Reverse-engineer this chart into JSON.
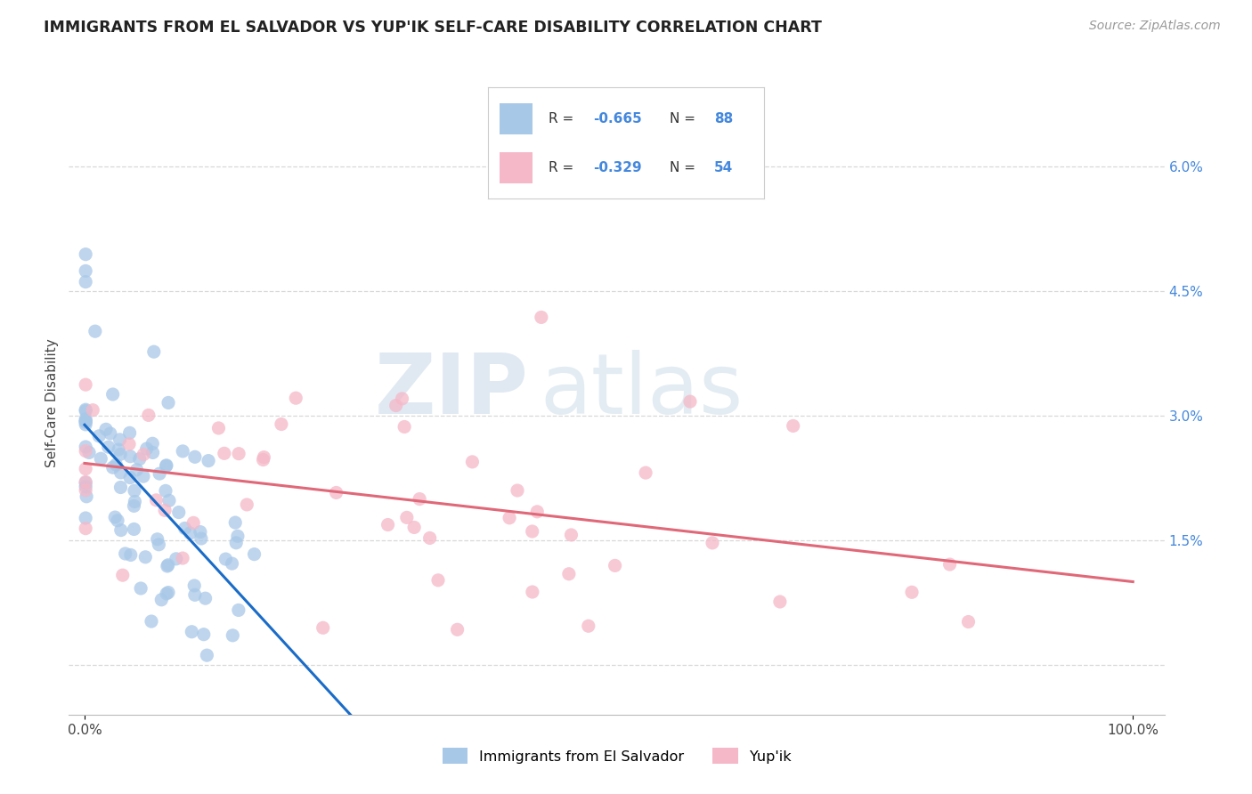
{
  "title": "IMMIGRANTS FROM EL SALVADOR VS YUP'IK SELF-CARE DISABILITY CORRELATION CHART",
  "source": "Source: ZipAtlas.com",
  "ylabel": "Self-Care Disability",
  "label_blue": "Immigrants from El Salvador",
  "label_pink": "Yup'ik",
  "color_blue": "#a8c8e8",
  "color_pink": "#f5b8c8",
  "trendline_blue": "#1a6cc8",
  "trendline_pink": "#e06878",
  "legend_r_blue": "R = -0.665",
  "legend_n_blue": "N = 88",
  "legend_r_pink": "R = -0.329",
  "legend_n_pink": "N = 54",
  "background_color": "#ffffff",
  "grid_color": "#d8d8d8",
  "watermark_zip": "ZIP",
  "watermark_atlas": "atlas",
  "ytick_color": "#4488dd",
  "title_color": "#222222",
  "source_color": "#999999"
}
